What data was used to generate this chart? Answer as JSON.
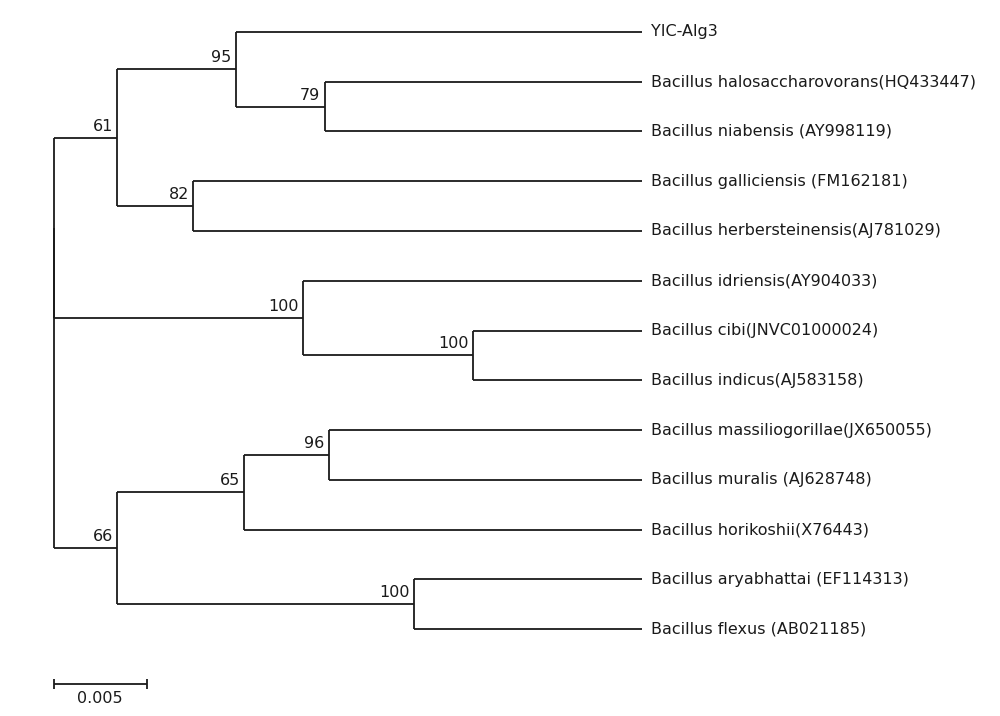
{
  "taxa": [
    "YIC-Alg3",
    "Bacillus halosaccharovorans(HQ433447)",
    "Bacillus niabensis (AY998119)",
    "Bacillus galliciensis (FM162181)",
    "Bacillus herbersteinensis(AJ781029)",
    "Bacillus idriensis(AY904033)",
    "Bacillus cibi(JNVC01000024)",
    "Bacillus indicus(AJ583158)",
    "Bacillus massiliogorillae(JX650055)",
    "Bacillus muralis (AJ628748)",
    "Bacillus horikoshii(X76443)",
    "Bacillus aryabhattai (EF114313)",
    "Bacillus flexus (AB021185)"
  ],
  "line_color": "#1a1a1a",
  "text_color": "#1a1a1a",
  "bg_color": "#ffffff",
  "font_size": 11.5,
  "bootstrap_font_size": 11.5,
  "scale_bar_value": "0.005"
}
